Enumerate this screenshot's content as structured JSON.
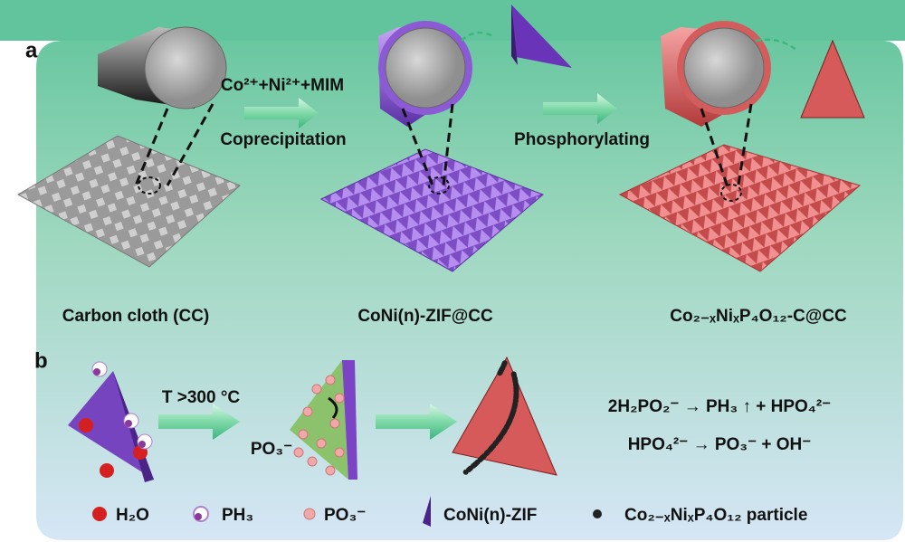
{
  "panel_a": {
    "label": "a",
    "reagents": "Co²⁺+Ni²⁺+MIM",
    "step1": "Coprecipitation",
    "step2": "Phosphorylating",
    "captions": [
      "Carbon cloth (CC)",
      "CoNi(n)-ZIF@CC",
      "Co₂₋ₓNiₓP₄O₁₂-C@CC"
    ]
  },
  "panel_b": {
    "label": "b",
    "condition": "T >300 °C",
    "ion": "PO₃⁻",
    "equations": [
      "2H₂PO₂⁻ → PH₃ ↑ + HPO₄²⁻",
      "HPO₄²⁻ → PO₃⁻ + OH⁻"
    ]
  },
  "legend": [
    "H₂O",
    "PH₃",
    "PO₃⁻",
    "CoNi(n)-ZIF",
    "Co₂₋ₓNiₓP₄O₁₂ particle"
  ]
}
